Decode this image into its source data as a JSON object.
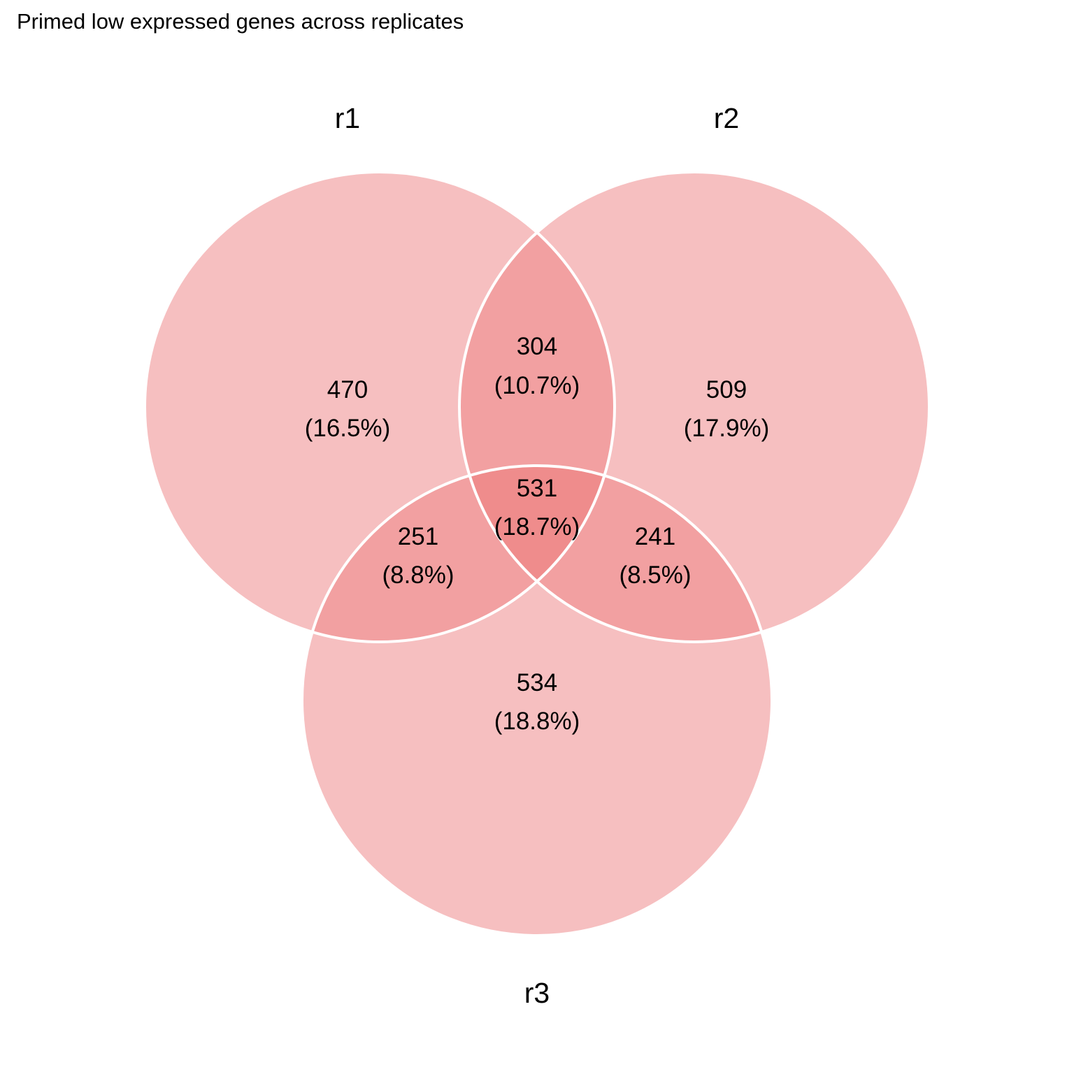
{
  "title": "Primed low expressed genes across replicates",
  "colors": {
    "background": "#ffffff",
    "outline": "#ffffff",
    "text": "#000000",
    "single_region": "#f6bfc0",
    "pair_region": "#f2a0a1",
    "triple_region": "#ef8c8c"
  },
  "sets": [
    {
      "id": "r1",
      "label": "r1"
    },
    {
      "id": "r2",
      "label": "r2"
    },
    {
      "id": "r3",
      "label": "r3"
    }
  ],
  "regions": {
    "r1_only": {
      "sets": [
        "r1"
      ],
      "count": "470",
      "percent": "(16.5%)"
    },
    "r2_only": {
      "sets": [
        "r2"
      ],
      "count": "509",
      "percent": "(17.9%)"
    },
    "r3_only": {
      "sets": [
        "r3"
      ],
      "count": "534",
      "percent": "(18.8%)"
    },
    "r1_r2": {
      "sets": [
        "r1",
        "r2"
      ],
      "count": "304",
      "percent": "(10.7%)"
    },
    "r1_r3": {
      "sets": [
        "r1",
        "r3"
      ],
      "count": "251",
      "percent": "(8.8%)"
    },
    "r2_r3": {
      "sets": [
        "r2",
        "r3"
      ],
      "count": "241",
      "percent": "(8.5%)"
    },
    "r1_r2_r3": {
      "sets": [
        "r1",
        "r2",
        "r3"
      ],
      "count": "531",
      "percent": "(18.7%)"
    }
  }
}
